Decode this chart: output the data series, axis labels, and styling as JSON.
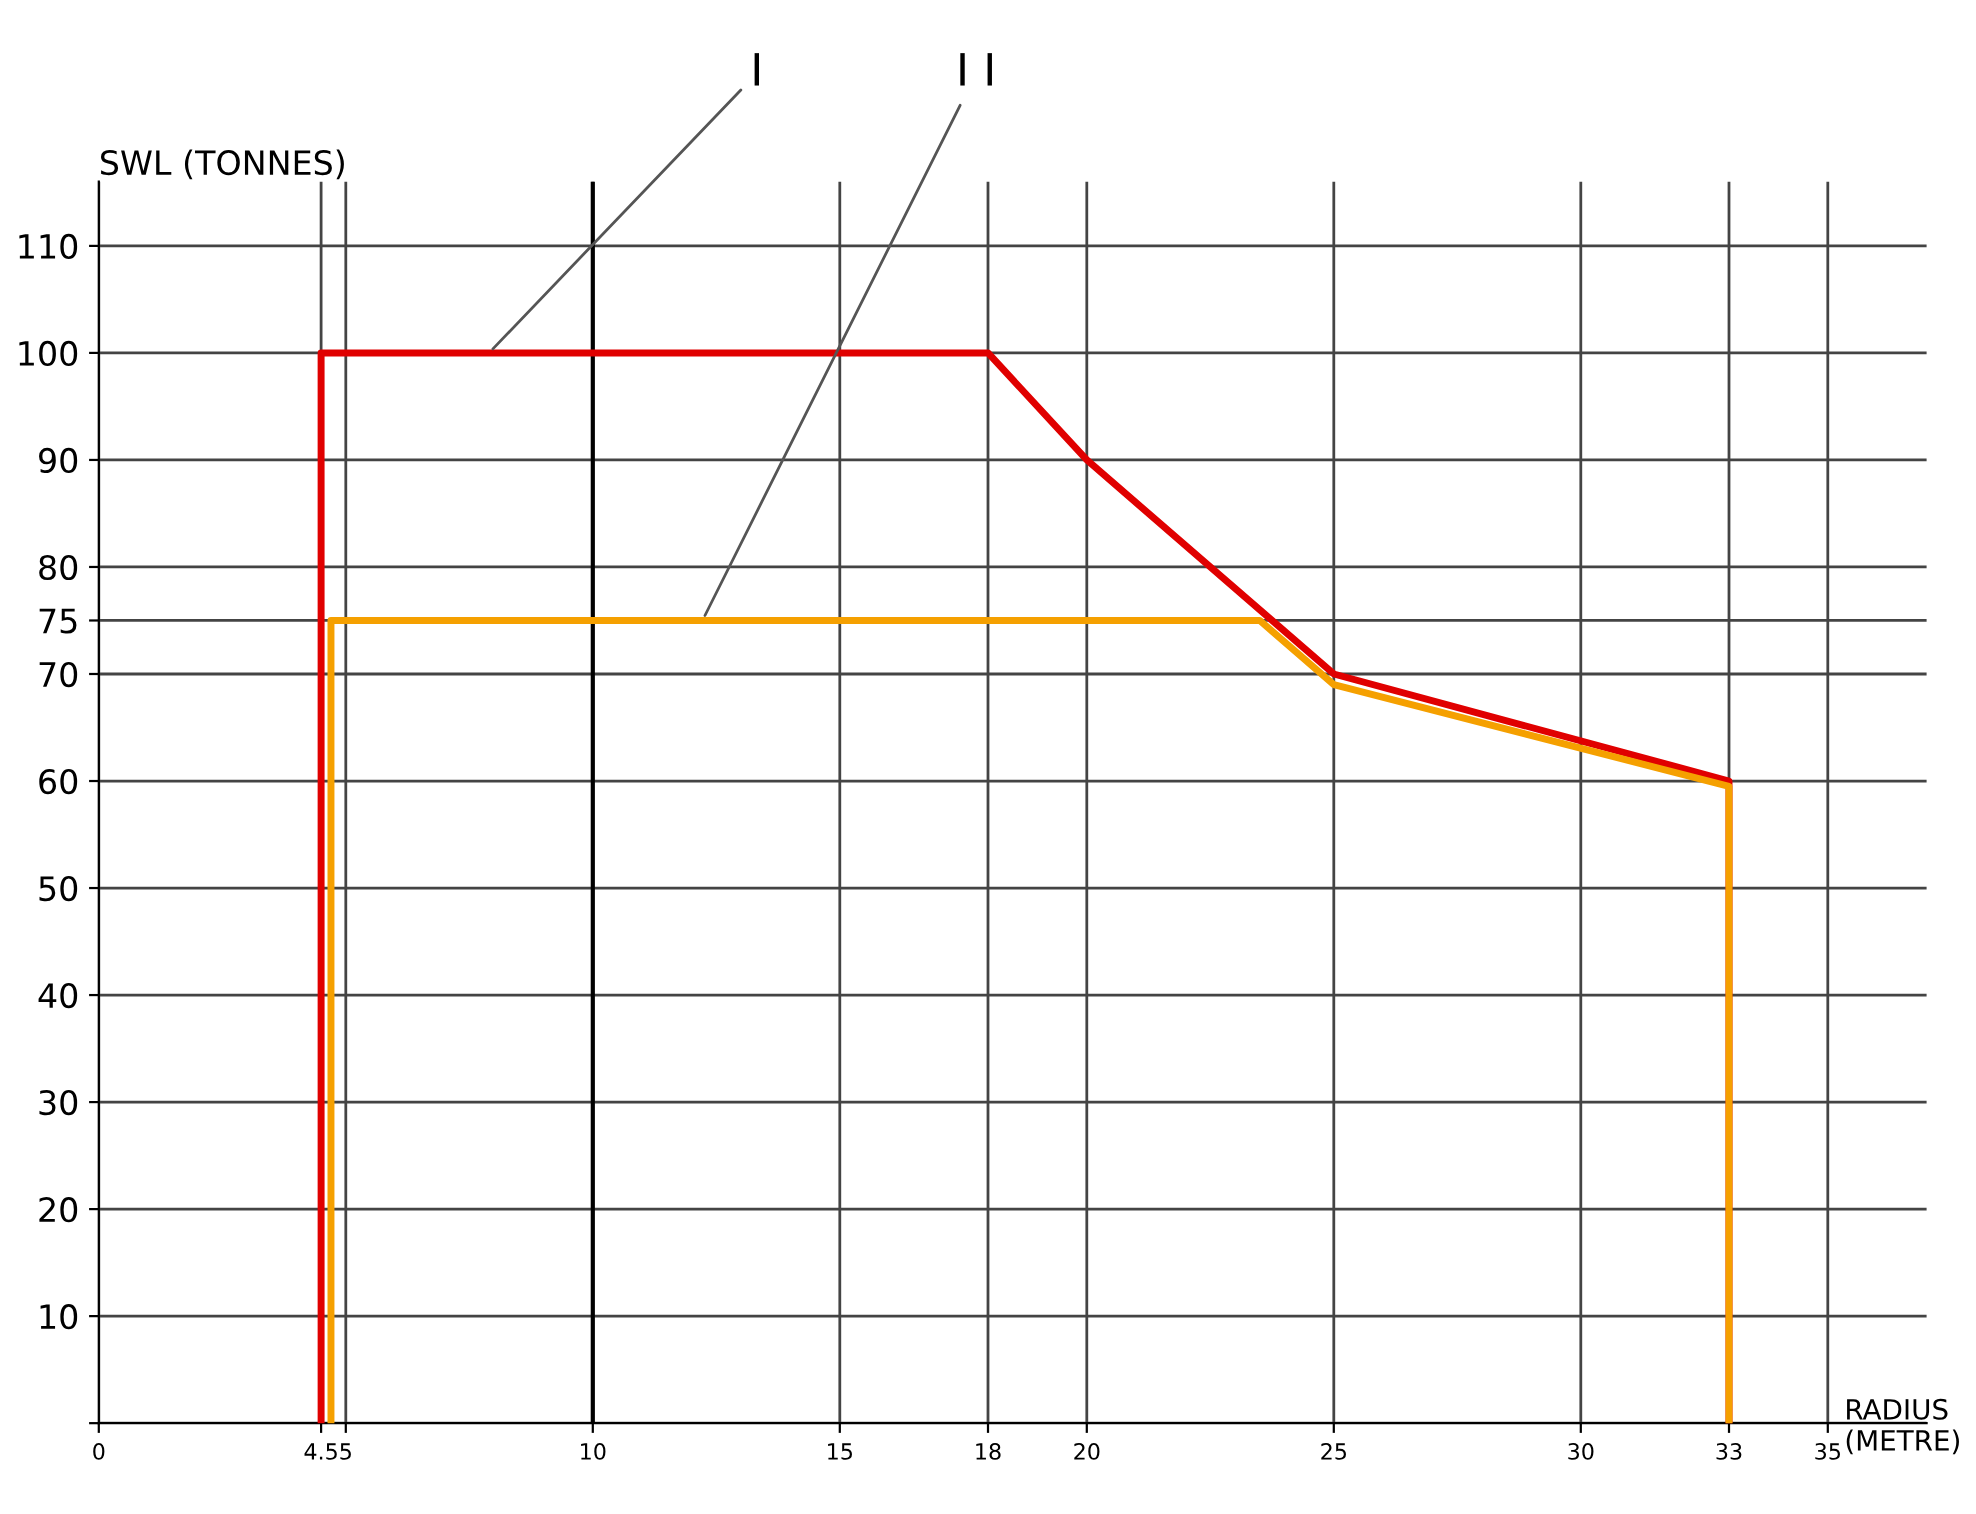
{
  "chart_data": {
    "type": "line",
    "xlabel": "RADIUS\n(METRE)",
    "ylabel": "SWL (TONNES)",
    "series": [
      {
        "name": "I",
        "color": "#e00000",
        "x": [
          4.5,
          4.5,
          18,
          20,
          25,
          33,
          33
        ],
        "values": [
          0,
          100,
          100,
          90,
          70,
          60,
          0
        ]
      },
      {
        "name": "I I",
        "color": "#f5a000",
        "x": [
          4.7,
          4.7,
          23.5,
          25,
          33,
          33
        ],
        "values": [
          0,
          75,
          75,
          69,
          59.5,
          0
        ]
      }
    ],
    "ref_lines": [
      {
        "axis": "x",
        "value": 10,
        "color": "#000000",
        "line_style": "solid"
      }
    ],
    "xlim": [
      0,
      37
    ],
    "ylim": [
      0,
      116
    ],
    "xticks": [
      0,
      4.5,
      5,
      10,
      15,
      18,
      20,
      25,
      30,
      33,
      35
    ],
    "yticks": [
      {
        "value": 0,
        "label": null
      },
      10,
      20,
      30,
      40,
      50,
      60,
      70,
      75,
      80,
      90,
      100,
      110
    ],
    "grid": true,
    "legend": false,
    "marker": "none",
    "line_style": "solid"
  }
}
